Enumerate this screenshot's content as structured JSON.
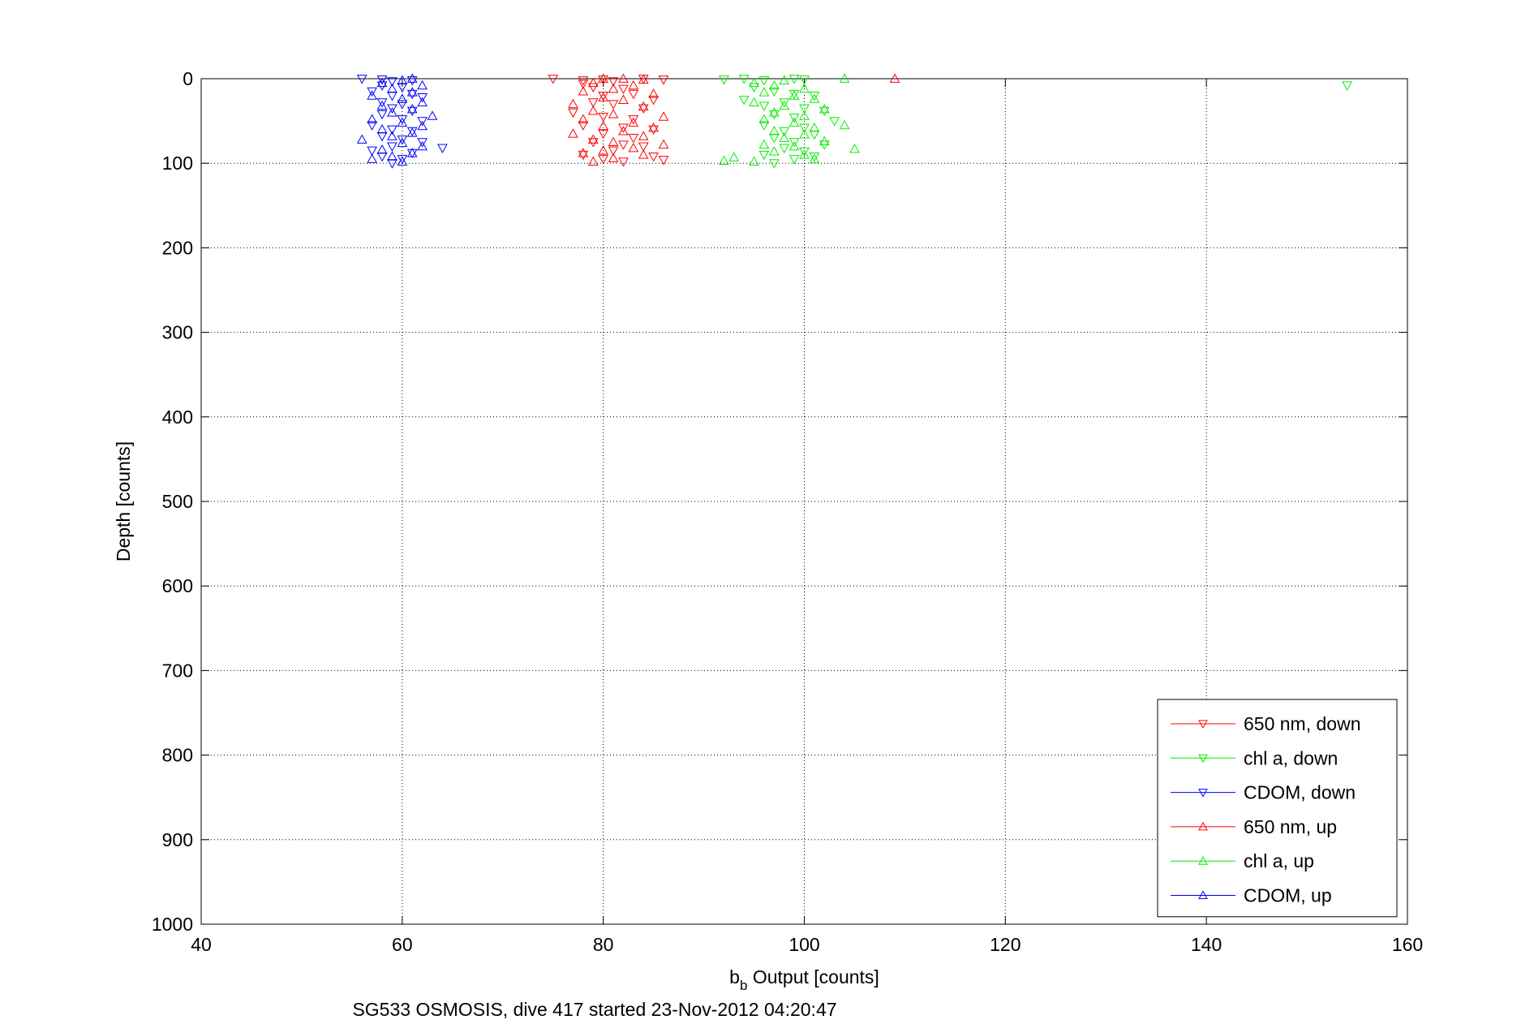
{
  "chart_data": {
    "type": "scatter",
    "xlabel_main": "b",
    "xlabel_sub": "b",
    "xlabel_rest": " Output [counts]",
    "ylabel": "Depth [counts]",
    "caption": "SG533 OSMOSIS, dive 417 started 23-Nov-2012 04:20:47",
    "xlim": [
      40,
      160
    ],
    "ylim": [
      0,
      1000
    ],
    "y_reversed": true,
    "xticks": [
      40,
      60,
      80,
      100,
      120,
      140,
      160
    ],
    "yticks": [
      0,
      100,
      200,
      300,
      400,
      500,
      600,
      700,
      800,
      900,
      1000
    ],
    "grid": true,
    "grid_style": "dotted",
    "legend_position": "bottom-right",
    "series": [
      {
        "name": "650 nm, down",
        "color": "#ff0000",
        "marker": "triangle-down",
        "points": [
          [
            75,
            0
          ],
          [
            78,
            2
          ],
          [
            78,
            6
          ],
          [
            80,
            1
          ],
          [
            81,
            3
          ],
          [
            84,
            0
          ],
          [
            86,
            1
          ],
          [
            79,
            10
          ],
          [
            82,
            12
          ],
          [
            80,
            20
          ],
          [
            83,
            18
          ],
          [
            85,
            25
          ],
          [
            79,
            28
          ],
          [
            81,
            30
          ],
          [
            84,
            35
          ],
          [
            77,
            40
          ],
          [
            80,
            45
          ],
          [
            83,
            48
          ],
          [
            78,
            55
          ],
          [
            82,
            58
          ],
          [
            85,
            60
          ],
          [
            80,
            65
          ],
          [
            83,
            70
          ],
          [
            79,
            75
          ],
          [
            82,
            78
          ],
          [
            84,
            80
          ],
          [
            81,
            85
          ],
          [
            78,
            90
          ],
          [
            85,
            92
          ],
          [
            80,
            95
          ],
          [
            82,
            98
          ],
          [
            86,
            96
          ]
        ]
      },
      {
        "name": "chl a, down",
        "color": "#00ee00",
        "marker": "triangle-down",
        "points": [
          [
            92,
            1
          ],
          [
            94,
            0
          ],
          [
            96,
            2
          ],
          [
            99,
            0
          ],
          [
            100,
            1
          ],
          [
            154,
            8
          ],
          [
            95,
            10
          ],
          [
            97,
            15
          ],
          [
            99,
            18
          ],
          [
            101,
            20
          ],
          [
            94,
            25
          ],
          [
            98,
            28
          ],
          [
            96,
            32
          ],
          [
            100,
            35
          ],
          [
            102,
            38
          ],
          [
            97,
            42
          ],
          [
            99,
            46
          ],
          [
            103,
            50
          ],
          [
            96,
            55
          ],
          [
            100,
            58
          ],
          [
            98,
            62
          ],
          [
            101,
            66
          ],
          [
            97,
            70
          ],
          [
            99,
            75
          ],
          [
            102,
            78
          ],
          [
            98,
            82
          ],
          [
            100,
            86
          ],
          [
            96,
            90
          ],
          [
            99,
            95
          ],
          [
            101,
            92
          ],
          [
            97,
            100
          ]
        ]
      },
      {
        "name": "CDOM, down",
        "color": "#0000ff",
        "marker": "triangle-down",
        "points": [
          [
            56,
            0
          ],
          [
            58,
            1
          ],
          [
            59,
            3
          ],
          [
            61,
            2
          ],
          [
            58,
            8
          ],
          [
            60,
            10
          ],
          [
            57,
            15
          ],
          [
            59,
            20
          ],
          [
            61,
            18
          ],
          [
            62,
            22
          ],
          [
            58,
            28
          ],
          [
            60,
            30
          ],
          [
            59,
            35
          ],
          [
            61,
            38
          ],
          [
            58,
            42
          ],
          [
            60,
            48
          ],
          [
            62,
            50
          ],
          [
            57,
            55
          ],
          [
            59,
            60
          ],
          [
            61,
            62
          ],
          [
            58,
            68
          ],
          [
            60,
            72
          ],
          [
            62,
            75
          ],
          [
            59,
            80
          ],
          [
            57,
            85
          ],
          [
            61,
            88
          ],
          [
            58,
            92
          ],
          [
            60,
            95
          ],
          [
            59,
            100
          ],
          [
            64,
            82
          ]
        ]
      },
      {
        "name": "650 nm, up",
        "color": "#ff0000",
        "marker": "triangle-up",
        "points": [
          [
            109,
            0
          ],
          [
            80,
            0
          ],
          [
            82,
            0
          ],
          [
            84,
            1
          ],
          [
            79,
            5
          ],
          [
            83,
            8
          ],
          [
            81,
            12
          ],
          [
            78,
            15
          ],
          [
            85,
            18
          ],
          [
            80,
            22
          ],
          [
            82,
            25
          ],
          [
            77,
            30
          ],
          [
            84,
            33
          ],
          [
            79,
            38
          ],
          [
            81,
            42
          ],
          [
            86,
            45
          ],
          [
            78,
            48
          ],
          [
            83,
            52
          ],
          [
            80,
            56
          ],
          [
            85,
            58
          ],
          [
            82,
            62
          ],
          [
            77,
            65
          ],
          [
            84,
            68
          ],
          [
            79,
            72
          ],
          [
            81,
            75
          ],
          [
            86,
            78
          ],
          [
            83,
            82
          ],
          [
            80,
            85
          ],
          [
            78,
            88
          ],
          [
            84,
            90
          ],
          [
            81,
            94
          ],
          [
            79,
            98
          ]
        ]
      },
      {
        "name": "chl a, up",
        "color": "#00ee00",
        "marker": "triangle-up",
        "points": [
          [
            104,
            0
          ],
          [
            98,
            2
          ],
          [
            95,
            5
          ],
          [
            97,
            8
          ],
          [
            100,
            12
          ],
          [
            96,
            16
          ],
          [
            99,
            20
          ],
          [
            101,
            24
          ],
          [
            95,
            28
          ],
          [
            98,
            32
          ],
          [
            102,
            36
          ],
          [
            97,
            40
          ],
          [
            100,
            44
          ],
          [
            96,
            48
          ],
          [
            99,
            52
          ],
          [
            104,
            55
          ],
          [
            101,
            58
          ],
          [
            97,
            62
          ],
          [
            100,
            66
          ],
          [
            98,
            70
          ],
          [
            102,
            74
          ],
          [
            96,
            78
          ],
          [
            99,
            80
          ],
          [
            105,
            83
          ],
          [
            97,
            86
          ],
          [
            100,
            90
          ],
          [
            93,
            93
          ],
          [
            92,
            97
          ],
          [
            95,
            98
          ],
          [
            101,
            95
          ]
        ]
      },
      {
        "name": "CDOM, up",
        "color": "#0000ff",
        "marker": "triangle-up",
        "points": [
          [
            61,
            0
          ],
          [
            60,
            2
          ],
          [
            58,
            5
          ],
          [
            62,
            8
          ],
          [
            59,
            12
          ],
          [
            61,
            16
          ],
          [
            57,
            20
          ],
          [
            60,
            24
          ],
          [
            62,
            28
          ],
          [
            58,
            32
          ],
          [
            61,
            36
          ],
          [
            59,
            40
          ],
          [
            63,
            44
          ],
          [
            57,
            48
          ],
          [
            60,
            52
          ],
          [
            62,
            56
          ],
          [
            58,
            60
          ],
          [
            61,
            64
          ],
          [
            59,
            68
          ],
          [
            56,
            72
          ],
          [
            60,
            76
          ],
          [
            62,
            80
          ],
          [
            58,
            84
          ],
          [
            61,
            88
          ],
          [
            59,
            92
          ],
          [
            57,
            95
          ],
          [
            60,
            98
          ]
        ]
      }
    ]
  }
}
